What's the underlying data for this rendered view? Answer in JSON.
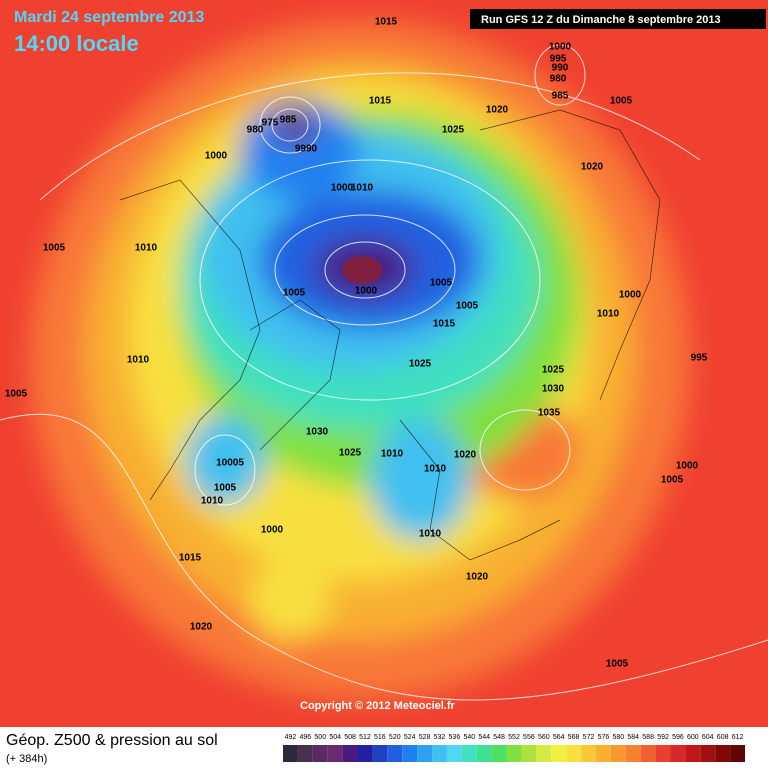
{
  "header": {
    "date": "Mardi 24 septembre 2013",
    "time": "14:00 locale",
    "run": "Run GFS 12 Z du Dimanche 8 septembre 2013"
  },
  "copyright": "Copyright © 2012 Meteociel.fr",
  "footer": {
    "title": "Géop. Z500 & pression au sol",
    "lead": "(+ 384h)"
  },
  "scale": {
    "values": [
      492,
      496,
      500,
      504,
      508,
      512,
      516,
      520,
      524,
      528,
      532,
      536,
      540,
      544,
      548,
      552,
      556,
      560,
      564,
      568,
      572,
      576,
      580,
      584,
      588,
      592,
      596,
      600,
      604,
      608,
      612
    ],
    "colors": [
      "#2a2a3a",
      "#4a3050",
      "#5a2a60",
      "#6a2a70",
      "#4a1a80",
      "#2020a0",
      "#2040c0",
      "#2060e0",
      "#2080f0",
      "#30a0f0",
      "#40c0f0",
      "#50d8f0",
      "#40e0c0",
      "#40e090",
      "#50e060",
      "#80e040",
      "#b0e040",
      "#d8e840",
      "#f0f040",
      "#f8e040",
      "#f8c838",
      "#f8b030",
      "#f89830",
      "#f88030",
      "#f06030",
      "#e84030",
      "#d82828",
      "#c01818",
      "#a01010",
      "#800808",
      "#600404"
    ]
  },
  "isobar_labels": [
    "1015",
    "1000",
    "995",
    "990",
    "980",
    "985",
    "1005",
    "1015",
    "1020",
    "1025",
    "980",
    "975",
    "985",
    "9990",
    "1000",
    "1020",
    "1000",
    "1010",
    "1005",
    "1010",
    "1000",
    "1005",
    "1005",
    "1005",
    "1000",
    "1015",
    "1010",
    "995",
    "1010",
    "1025",
    "1025",
    "1030",
    "1005",
    "1035",
    "1030",
    "1025",
    "1010",
    "1020",
    "1010",
    "10005",
    "1000",
    "1005",
    "1005",
    "1010",
    "1000",
    "1010",
    "1015",
    "1020",
    "1020",
    "1005"
  ]
}
